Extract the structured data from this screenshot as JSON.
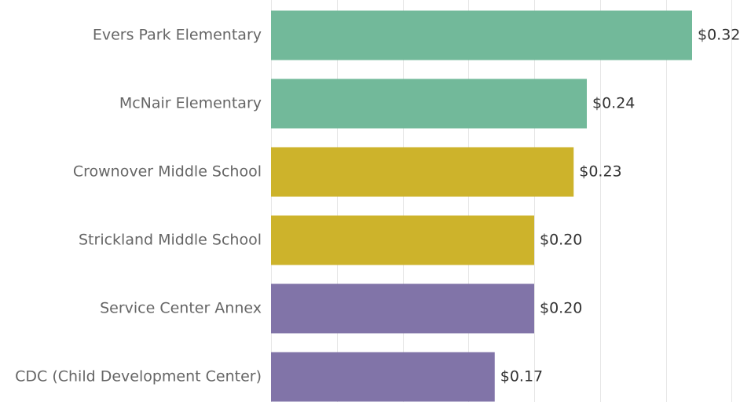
{
  "chart_data": {
    "type": "bar",
    "orientation": "horizontal",
    "categories": [
      "Evers Park Elementary",
      "McNair Elementary",
      "Crownover Middle School",
      "Strickland Middle School",
      "Service Center Annex",
      "CDC (Child Development Center)"
    ],
    "values": [
      0.32,
      0.24,
      0.23,
      0.2,
      0.2,
      0.17
    ],
    "value_labels": [
      "$0.32",
      "$0.24",
      "$0.23",
      "$0.20",
      "$0.20",
      "$0.17"
    ],
    "bar_colors": [
      "#72b99a",
      "#72b99a",
      "#cdb32b",
      "#cdb32b",
      "#8174a8",
      "#8174a8"
    ],
    "xlim": [
      0,
      0.35
    ],
    "grid": true,
    "title": "",
    "xlabel": "",
    "ylabel": ""
  }
}
